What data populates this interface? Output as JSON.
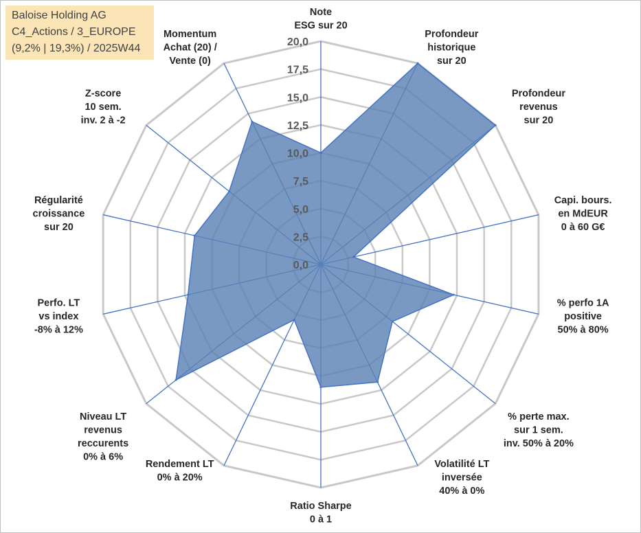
{
  "title_box": {
    "line1": "Baloise Holding AG",
    "line2": "C4_Actions / 3_EUROPE",
    "line3": "(9,2% | 19,3%) / 2025W44",
    "background": "#fbe5b6"
  },
  "chart_data": {
    "type": "radar",
    "rlim": [
      0,
      20
    ],
    "ticks": [
      "0,0",
      "2,5",
      "5,0",
      "7,5",
      "10,0",
      "12,5",
      "15,0",
      "17,5",
      "20,0"
    ],
    "tick_values": [
      0,
      2.5,
      5,
      7.5,
      10,
      12.5,
      15,
      17.5,
      20
    ],
    "axes": [
      {
        "label": [
          "Note",
          "ESG sur 20"
        ],
        "value": 10.0
      },
      {
        "label": [
          "Profondeur",
          "historique",
          "sur 20"
        ],
        "value": 20.0
      },
      {
        "label": [
          "Profondeur",
          "revenus",
          "sur 20"
        ],
        "value": 20.0
      },
      {
        "label": [
          "Capi. bours.",
          "en MdEUR",
          "0 à 60 G€"
        ],
        "value": 3.0
      },
      {
        "label": [
          "% perfo 1A",
          "positive",
          "50% à 80%"
        ],
        "value": 12.2
      },
      {
        "label": [
          "% perte max.",
          "sur 1 sem.",
          "inv. 50% à 20%"
        ],
        "value": 8.2
      },
      {
        "label": [
          "Volatilité LT",
          "inversée",
          "40% à 0%"
        ],
        "value": 11.7
      },
      {
        "label": [
          "Ratio Sharpe",
          "0 à 1"
        ],
        "value": 11.0
      },
      {
        "label": [
          "Rendement LT",
          "0% à 20%"
        ],
        "value": 5.5
      },
      {
        "label": [
          "Niveau LT",
          "revenus",
          "reccurents",
          "0% à 6%"
        ],
        "value": 16.6
      },
      {
        "label": [
          "Perfo. LT",
          "vs index",
          "-8% à 12%"
        ],
        "value": 12.2
      },
      {
        "label": [
          "Régularité",
          "croissance",
          "sur 20"
        ],
        "value": 11.6
      },
      {
        "label": [
          "Z-score",
          "10 sem.",
          "inv. 2 à -2"
        ],
        "value": 10.5
      },
      {
        "label": [
          "Momentum",
          "Achat (20) /",
          "Vente (0)"
        ],
        "value": 14.2
      }
    ],
    "fill_color": "#5b82b6",
    "line_color": "#4472c4",
    "grid_color": "#c8c8c8"
  }
}
